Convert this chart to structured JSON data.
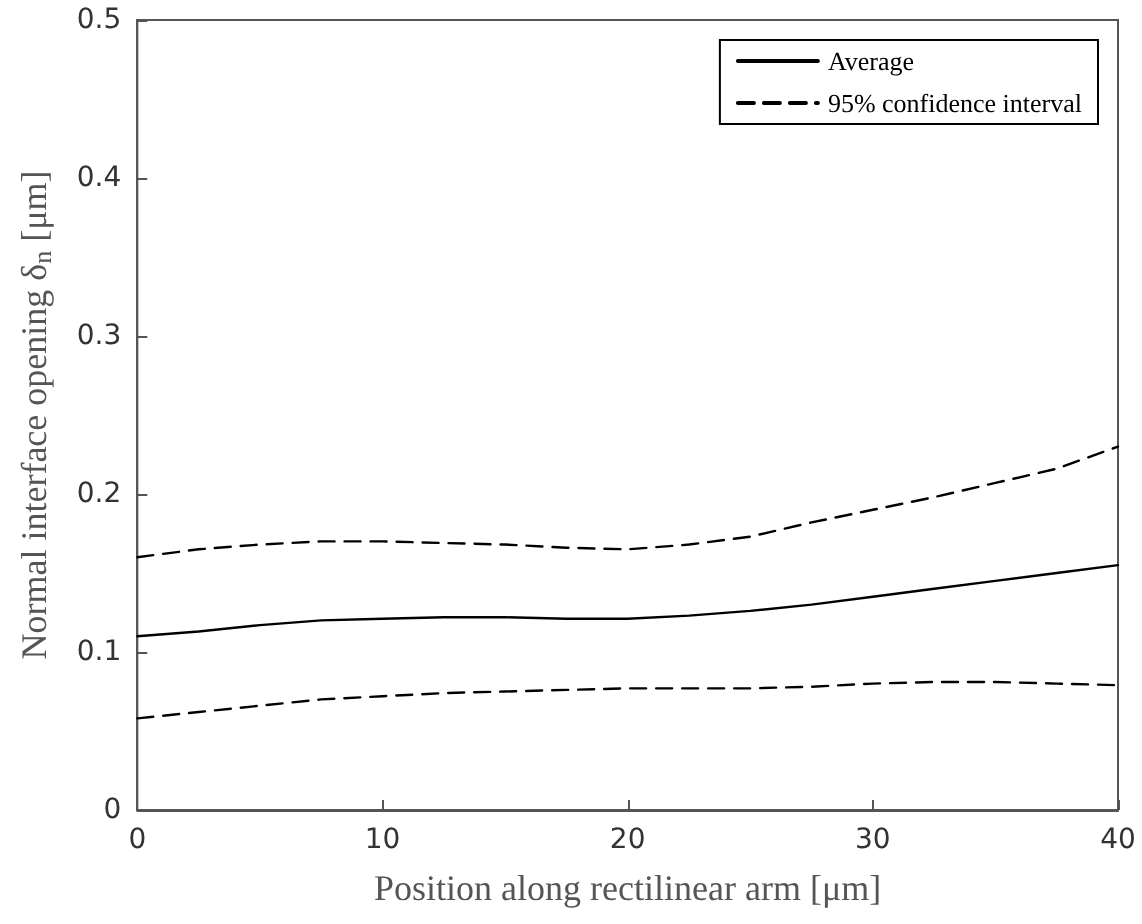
{
  "chart_data": {
    "type": "line",
    "xlabel": "Position along rectilinear arm [μm]",
    "ylabel": "Normal interface opening δ$_{n}$ [μm]",
    "x": [
      0,
      2.5,
      5,
      7.5,
      10,
      12.5,
      15,
      17.5,
      20,
      22.5,
      25,
      27.5,
      30,
      32.5,
      35,
      37.5,
      40
    ],
    "series": [
      {
        "name": "Average",
        "color": "#000000",
        "line_style": "solid",
        "values": [
          0.11,
          0.113,
          0.117,
          0.12,
          0.121,
          0.122,
          0.122,
          0.121,
          0.121,
          0.123,
          0.126,
          0.13,
          0.135,
          0.14,
          0.145,
          0.15,
          0.155
        ]
      },
      {
        "name": "95% confidence interval",
        "color": "#000000",
        "line_style": "dashed",
        "values": [
          0.16,
          0.165,
          0.168,
          0.17,
          0.17,
          0.169,
          0.168,
          0.166,
          0.165,
          0.168,
          0.173,
          0.182,
          0.19,
          0.198,
          0.207,
          0.216,
          0.23
        ]
      },
      {
        "color": "#000000",
        "line_style": "dashed",
        "values": [
          0.058,
          0.062,
          0.066,
          0.07,
          0.072,
          0.074,
          0.075,
          0.076,
          0.077,
          0.077,
          0.077,
          0.078,
          0.08,
          0.081,
          0.081,
          0.08,
          0.079
        ]
      }
    ],
    "xlim": [
      0,
      40
    ],
    "xticks": [
      0,
      10,
      20,
      30,
      40
    ],
    "ylim": [
      0,
      0.5
    ],
    "yticks": [
      0,
      0.1,
      0.2,
      0.3,
      0.4,
      0.5
    ],
    "grid": false,
    "legend": "top right",
    "marker": "none"
  }
}
